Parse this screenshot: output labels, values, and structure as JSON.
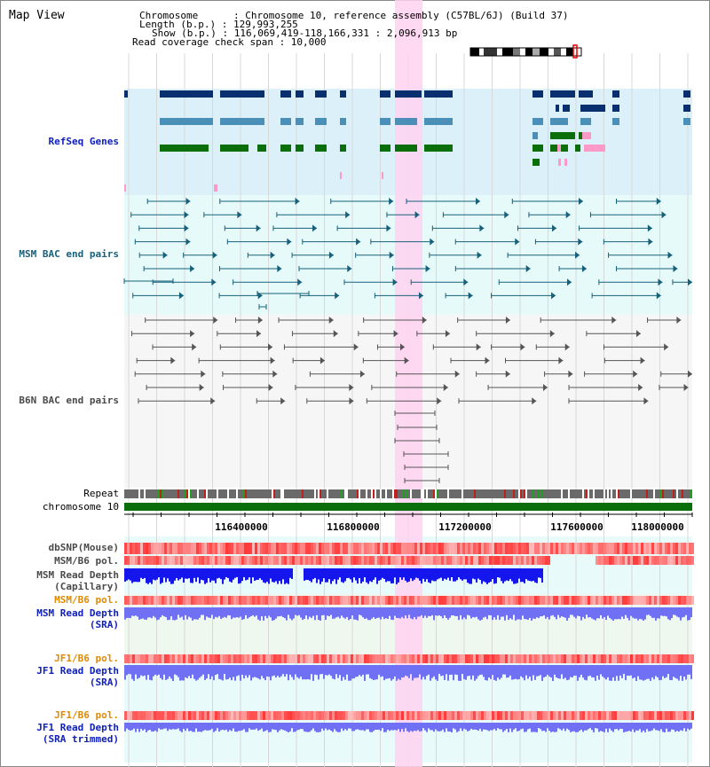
{
  "page": {
    "title": "Map View"
  },
  "info": {
    "chromosome_line": "Chromosome      : Chromosome 10, reference assembly (C57BL/6J) (Build 37)",
    "length_line": "Length (b.p.) : 129,993,255",
    "show_line": "Show (b.p.) : 116,069,419-118,166,331 : 2,096,913 bp",
    "coverage_line": "Read coverage check span : 10,000"
  },
  "tracks": {
    "refseq": "RefSeq Genes",
    "msm_bac": "MSM BAC end pairs",
    "b6n_bac": "B6N BAC end pairs",
    "repeat": "Repeat",
    "chromosome": "chromosome 10",
    "dbsnp": "dbSNP(Mouse)",
    "msm_b6_pol": "MSM/B6 pol.",
    "msm_depth_cap_1": "MSM Read Depth",
    "msm_depth_cap_2": "(Capillary)",
    "msm_b6_pol2": "MSM/B6 pol.",
    "msm_depth_sra_1": "MSM Read Depth",
    "msm_depth_sra_2": "(SRA)",
    "jf1_b6_pol": "JF1/B6 pol.",
    "jf1_depth_sra_1": "JF1 Read Depth",
    "jf1_depth_sra_2": "(SRA)",
    "jf1_b6_pol2": "JF1/B6 pol.",
    "jf1_depth_trim_1": "JF1 Read Depth",
    "jf1_depth_trim_2": "(SRA trimmed)"
  },
  "axis": {
    "ticks": [
      "116400000",
      "116800000",
      "117200000",
      "117600000",
      "118000000"
    ]
  },
  "colors": {
    "refseq_bg": "#dcf0fa",
    "msm_bg": "#e6fafa",
    "b6n_bg": "#f6f6f6",
    "highlight": "#ffd2f0",
    "chrom_bar": "#0a6e0a",
    "gene_dark": "#0a2f6e",
    "gene_mid": "#4a8fb8",
    "gene_green": "#0a6e0a",
    "gene_pink": "#ff9ac8",
    "bac_msm": "#17607a",
    "bac_b6n": "#555555",
    "depth_dark": "#1515ee",
    "depth_light": "#7070f5",
    "pol_red": "#ee2020"
  }
}
